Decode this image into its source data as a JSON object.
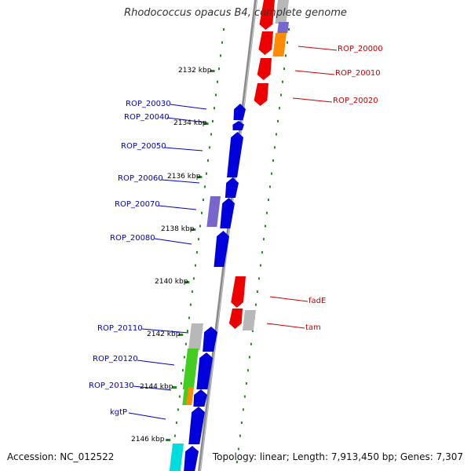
{
  "title": "Rhodococcus opacus B4, complete genome",
  "footer": {
    "accession": "Accession: NC_012522",
    "summary": "Topology: linear; Length: 7,913,450 bp; Genes: 7,307"
  },
  "colors": {
    "red": "#ee0000",
    "blue": "#0000dd",
    "purple": "#7766cc",
    "orange": "#ff8c00",
    "gray": "#b8b8b8",
    "green": "#44cc22",
    "cyan": "#00dddd",
    "dots": "#228822",
    "backbone": "#888888"
  },
  "scale_ticks": [
    "2132 kbp",
    "2134 kbp",
    "2136 kbp",
    "2138 kbp",
    "2140 kbp",
    "2142 kbp",
    "2144 kbp",
    "2146 kbp"
  ],
  "gene_labels_left": [
    "ROP_20030",
    "ROP_20040",
    "ROP_20050",
    "ROP_20060",
    "ROP_20070",
    "ROP_20080",
    "ROP_20110",
    "ROP_20120",
    "ROP_20130",
    "kgtP"
  ],
  "gene_labels_right": [
    "ROP_20000",
    "ROP_20010",
    "ROP_20020",
    "fadE",
    "tam"
  ]
}
